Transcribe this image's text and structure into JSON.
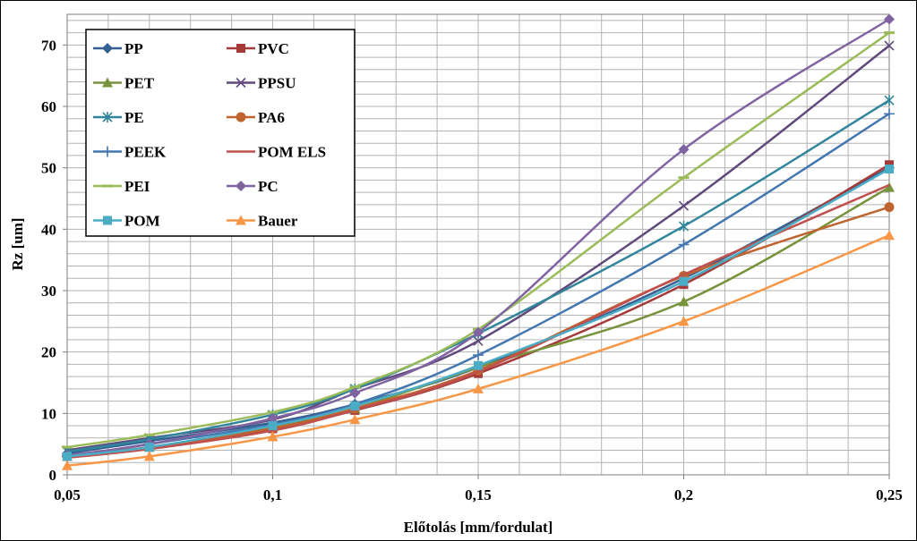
{
  "chart_data": {
    "type": "line",
    "title": "",
    "xlabel": "Előtolás [mm/fordulat]",
    "ylabel": "Rz [um]",
    "x": [
      0.05,
      0.07,
      0.1,
      0.12,
      0.15,
      0.2,
      0.25
    ],
    "x_tick_values": [
      0.05,
      0.1,
      0.15,
      0.2,
      0.25
    ],
    "x_tick_labels": [
      "0,05",
      "0,1",
      "0,15",
      "0,2",
      "0,25"
    ],
    "xlim": [
      0.05,
      0.25
    ],
    "ylim": [
      0,
      75
    ],
    "y_tick_values": [
      0,
      10,
      20,
      30,
      40,
      50,
      60,
      70
    ],
    "y_tick_labels": [
      "0",
      "10",
      "20",
      "30",
      "40",
      "50",
      "60",
      "70"
    ],
    "grid": true,
    "legend_position": "top-left",
    "series": [
      {
        "name": "PP",
        "color": "#366092",
        "marker": "diamond",
        "values": [
          3.5,
          5.5,
          8.5,
          11.5,
          17.5,
          32.0,
          50.0
        ]
      },
      {
        "name": "PVC",
        "color": "#A63A38",
        "marker": "square",
        "values": [
          3.0,
          4.5,
          7.5,
          10.5,
          16.5,
          31.0,
          50.5
        ]
      },
      {
        "name": "PET",
        "color": "#77933C",
        "marker": "triangle",
        "values": [
          3.0,
          4.5,
          7.8,
          10.8,
          17.5,
          28.2,
          46.8
        ]
      },
      {
        "name": "PPSU",
        "color": "#604A7B",
        "marker": "x",
        "values": [
          4.0,
          6.0,
          9.0,
          14.0,
          21.8,
          43.8,
          69.9
        ]
      },
      {
        "name": "PE",
        "color": "#31859C",
        "marker": "asterisk",
        "values": [
          3.8,
          5.8,
          9.8,
          14.0,
          23.0,
          40.5,
          61.0
        ]
      },
      {
        "name": "PA6",
        "color": "#C0642F",
        "marker": "circle",
        "values": [
          3.0,
          4.5,
          7.6,
          10.8,
          17.0,
          32.4,
          43.6
        ]
      },
      {
        "name": "PEEK",
        "color": "#4477B0",
        "marker": "plus",
        "values": [
          3.0,
          5.0,
          8.2,
          11.5,
          19.5,
          37.5,
          58.8
        ]
      },
      {
        "name": "POM ELS",
        "color": "#C0504D",
        "marker": "none",
        "values": [
          2.8,
          4.2,
          7.2,
          10.6,
          16.8,
          32.6,
          47.2
        ]
      },
      {
        "name": "PEI",
        "color": "#9BBB59",
        "marker": "dash",
        "values": [
          4.5,
          6.5,
          10.2,
          14.3,
          23.7,
          48.4,
          72.0
        ]
      },
      {
        "name": "PC",
        "color": "#8064A2",
        "marker": "diamond",
        "values": [
          3.2,
          5.0,
          9.2,
          13.3,
          23.2,
          53.0,
          74.2
        ]
      },
      {
        "name": "POM",
        "color": "#4BACC6",
        "marker": "square",
        "values": [
          3.0,
          4.5,
          8.0,
          11.2,
          17.8,
          31.5,
          49.8
        ]
      },
      {
        "name": "Bauer",
        "color": "#F79646",
        "marker": "triangle",
        "values": [
          1.5,
          3.0,
          6.2,
          9.0,
          14.0,
          25.0,
          39.0
        ]
      }
    ]
  }
}
